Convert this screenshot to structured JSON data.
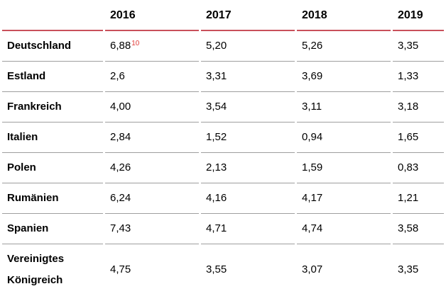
{
  "table": {
    "columns": [
      "",
      "2016",
      "2017",
      "2018",
      "2019"
    ],
    "rows": [
      {
        "label": "Deutschland",
        "values": [
          "6,88",
          "5,20",
          "5,26",
          "3,35"
        ],
        "footnote": "10",
        "footnote_on": 0
      },
      {
        "label": "Estland",
        "values": [
          "2,6",
          "3,31",
          "3,69",
          "1,33"
        ]
      },
      {
        "label": "Frankreich",
        "values": [
          "4,00",
          "3,54",
          "3,11",
          "3,18"
        ]
      },
      {
        "label": "Italien",
        "values": [
          "2,84",
          "1,52",
          "0,94",
          "1,65"
        ]
      },
      {
        "label": "Polen",
        "values": [
          "4,26",
          "2,13",
          "1,59",
          "0,83"
        ]
      },
      {
        "label": "Rumänien",
        "values": [
          "6,24",
          "4,16",
          "4,17",
          "1,21"
        ]
      },
      {
        "label": "Spanien",
        "values": [
          "7,43",
          "4,71",
          "4,74",
          "3,58"
        ]
      },
      {
        "label": "Vereinigtes Königreich",
        "values": [
          "4,75",
          "3,55",
          "3,07",
          "3,35"
        ]
      }
    ],
    "colors": {
      "header_underline": "#c9505b",
      "row_separator": "#9e9e9e",
      "footnote_red": "#e03a36",
      "text": "#000000"
    }
  },
  "chart_data": {
    "type": "table",
    "title": "",
    "categories": [
      "2016",
      "2017",
      "2018",
      "2019"
    ],
    "series": [
      {
        "name": "Deutschland",
        "values": [
          6.88,
          5.2,
          5.26,
          3.35
        ]
      },
      {
        "name": "Estland",
        "values": [
          2.6,
          3.31,
          3.69,
          1.33
        ]
      },
      {
        "name": "Frankreich",
        "values": [
          4.0,
          3.54,
          3.11,
          3.18
        ]
      },
      {
        "name": "Italien",
        "values": [
          2.84,
          1.52,
          0.94,
          1.65
        ]
      },
      {
        "name": "Polen",
        "values": [
          4.26,
          2.13,
          1.59,
          0.83
        ]
      },
      {
        "name": "Rumänien",
        "values": [
          6.24,
          4.16,
          4.17,
          1.21
        ]
      },
      {
        "name": "Spanien",
        "values": [
          7.43,
          4.71,
          4.74,
          3.58
        ]
      },
      {
        "name": "Vereinigtes Königreich",
        "values": [
          4.75,
          3.55,
          3.07,
          3.35
        ]
      }
    ],
    "annotations": [
      {
        "row": "Deutschland",
        "column": "2016",
        "marker": "10",
        "style": "red-superscript"
      }
    ],
    "layout": {
      "decimal_separator": ",",
      "value_alignment": "left",
      "first_column": "country-labels"
    }
  }
}
